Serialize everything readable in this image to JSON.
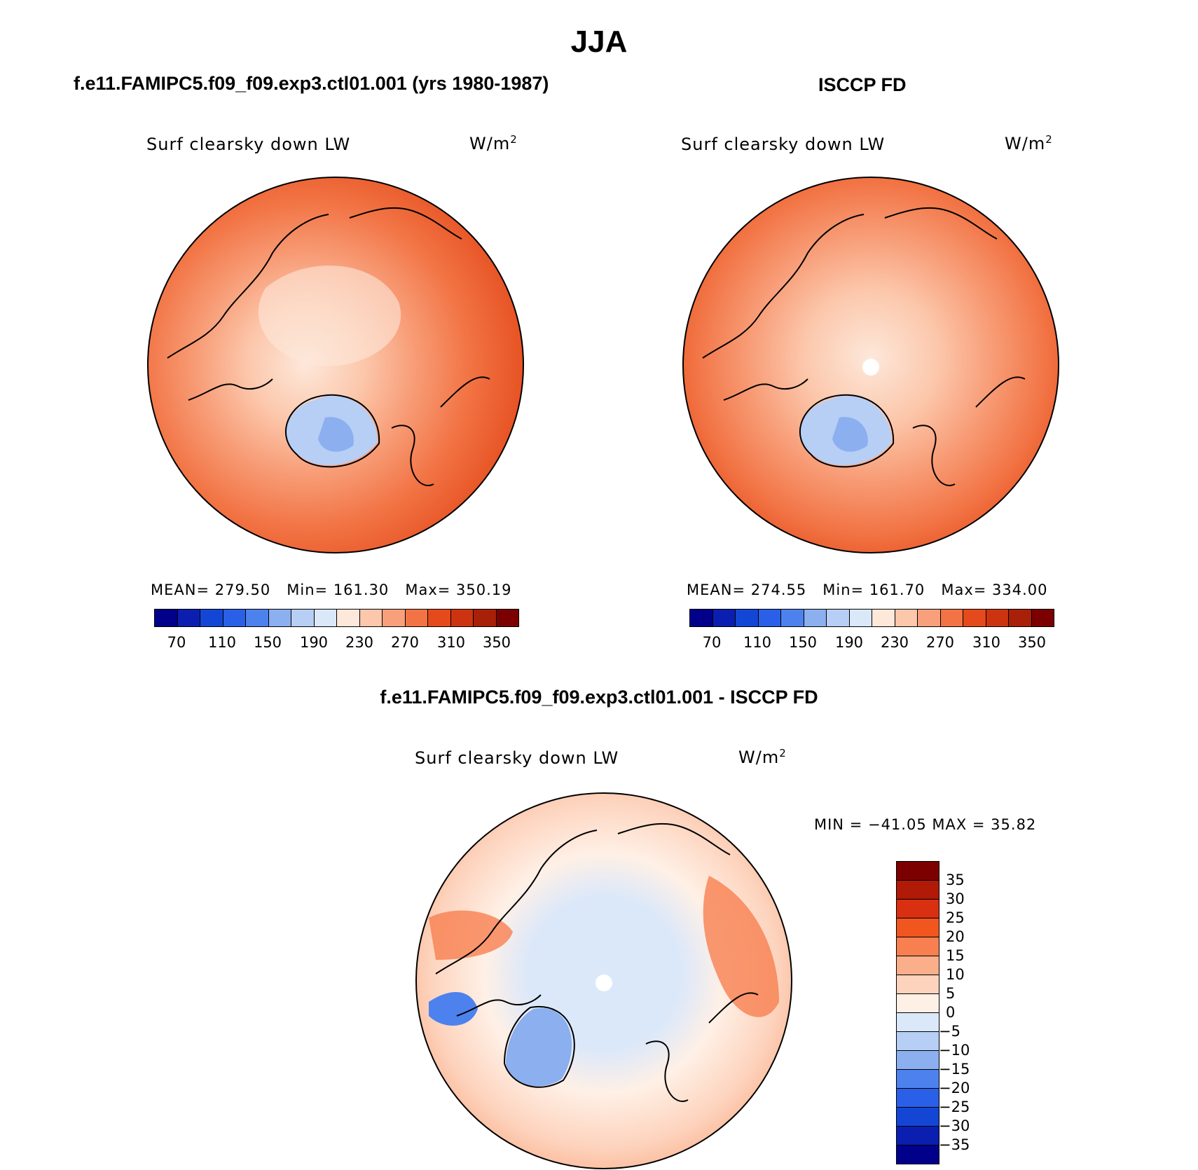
{
  "page": {
    "season": "JJA",
    "panel_a_title": "f.e11.FAMIPC5.f09_f09.exp3.ctl01.001 (yrs 1980-1987)",
    "panel_b_title": "ISCCP FD",
    "panel_c_title": "f.e11.FAMIPC5.f09_f09.exp3.ctl01.001 - ISCCP FD"
  },
  "map_a": {
    "variable": "Surf clearsky down LW",
    "units": "W/m",
    "units_exp": "2",
    "stats": {
      "mean_label": "MEAN=",
      "mean": "279.50",
      "min_label": "Min=",
      "min": "161.30",
      "max_label": "Max=",
      "max": "350.19"
    }
  },
  "map_b": {
    "variable": "Surf clearsky down LW",
    "units": "W/m",
    "units_exp": "2",
    "stats": {
      "mean_label": "MEAN=",
      "mean": "274.55",
      "min_label": "Min=",
      "min": "161.70",
      "max_label": "Max=",
      "max": "334.00"
    }
  },
  "map_c": {
    "variable": "Surf clearsky down LW",
    "units": "W/m",
    "units_exp": "2",
    "stats_line": "MIN = −41.05 MAX =  35.82"
  },
  "colorbar_abs": {
    "colors": [
      "#00008b",
      "#0a1fb0",
      "#1446d6",
      "#2a5fe8",
      "#4d82ee",
      "#8bafef",
      "#b7cef5",
      "#dbe8fa",
      "#fde8da",
      "#fcc7ab",
      "#f8a07b",
      "#f27445",
      "#e44a1b",
      "#cc3411",
      "#a82008",
      "#7d0000"
    ],
    "tick_labels": [
      "70",
      "110",
      "150",
      "190",
      "230",
      "270",
      "310",
      "350"
    ]
  },
  "colorbar_diff": {
    "colors": [
      "#7d0000",
      "#b01a06",
      "#d83010",
      "#f0561e",
      "#f88050",
      "#fbae8a",
      "#fdd3bd",
      "#fff0e6",
      "#dbe8fa",
      "#b7cef5",
      "#8bafef",
      "#4d82ee",
      "#2a5fe8",
      "#1446d6",
      "#0a1fb0",
      "#00008b"
    ],
    "tick_labels": [
      "35",
      "30",
      "25",
      "20",
      "15",
      "10",
      "5",
      "0",
      "−5",
      "−10",
      "−15",
      "−20",
      "−25",
      "−30",
      "−35"
    ]
  }
}
